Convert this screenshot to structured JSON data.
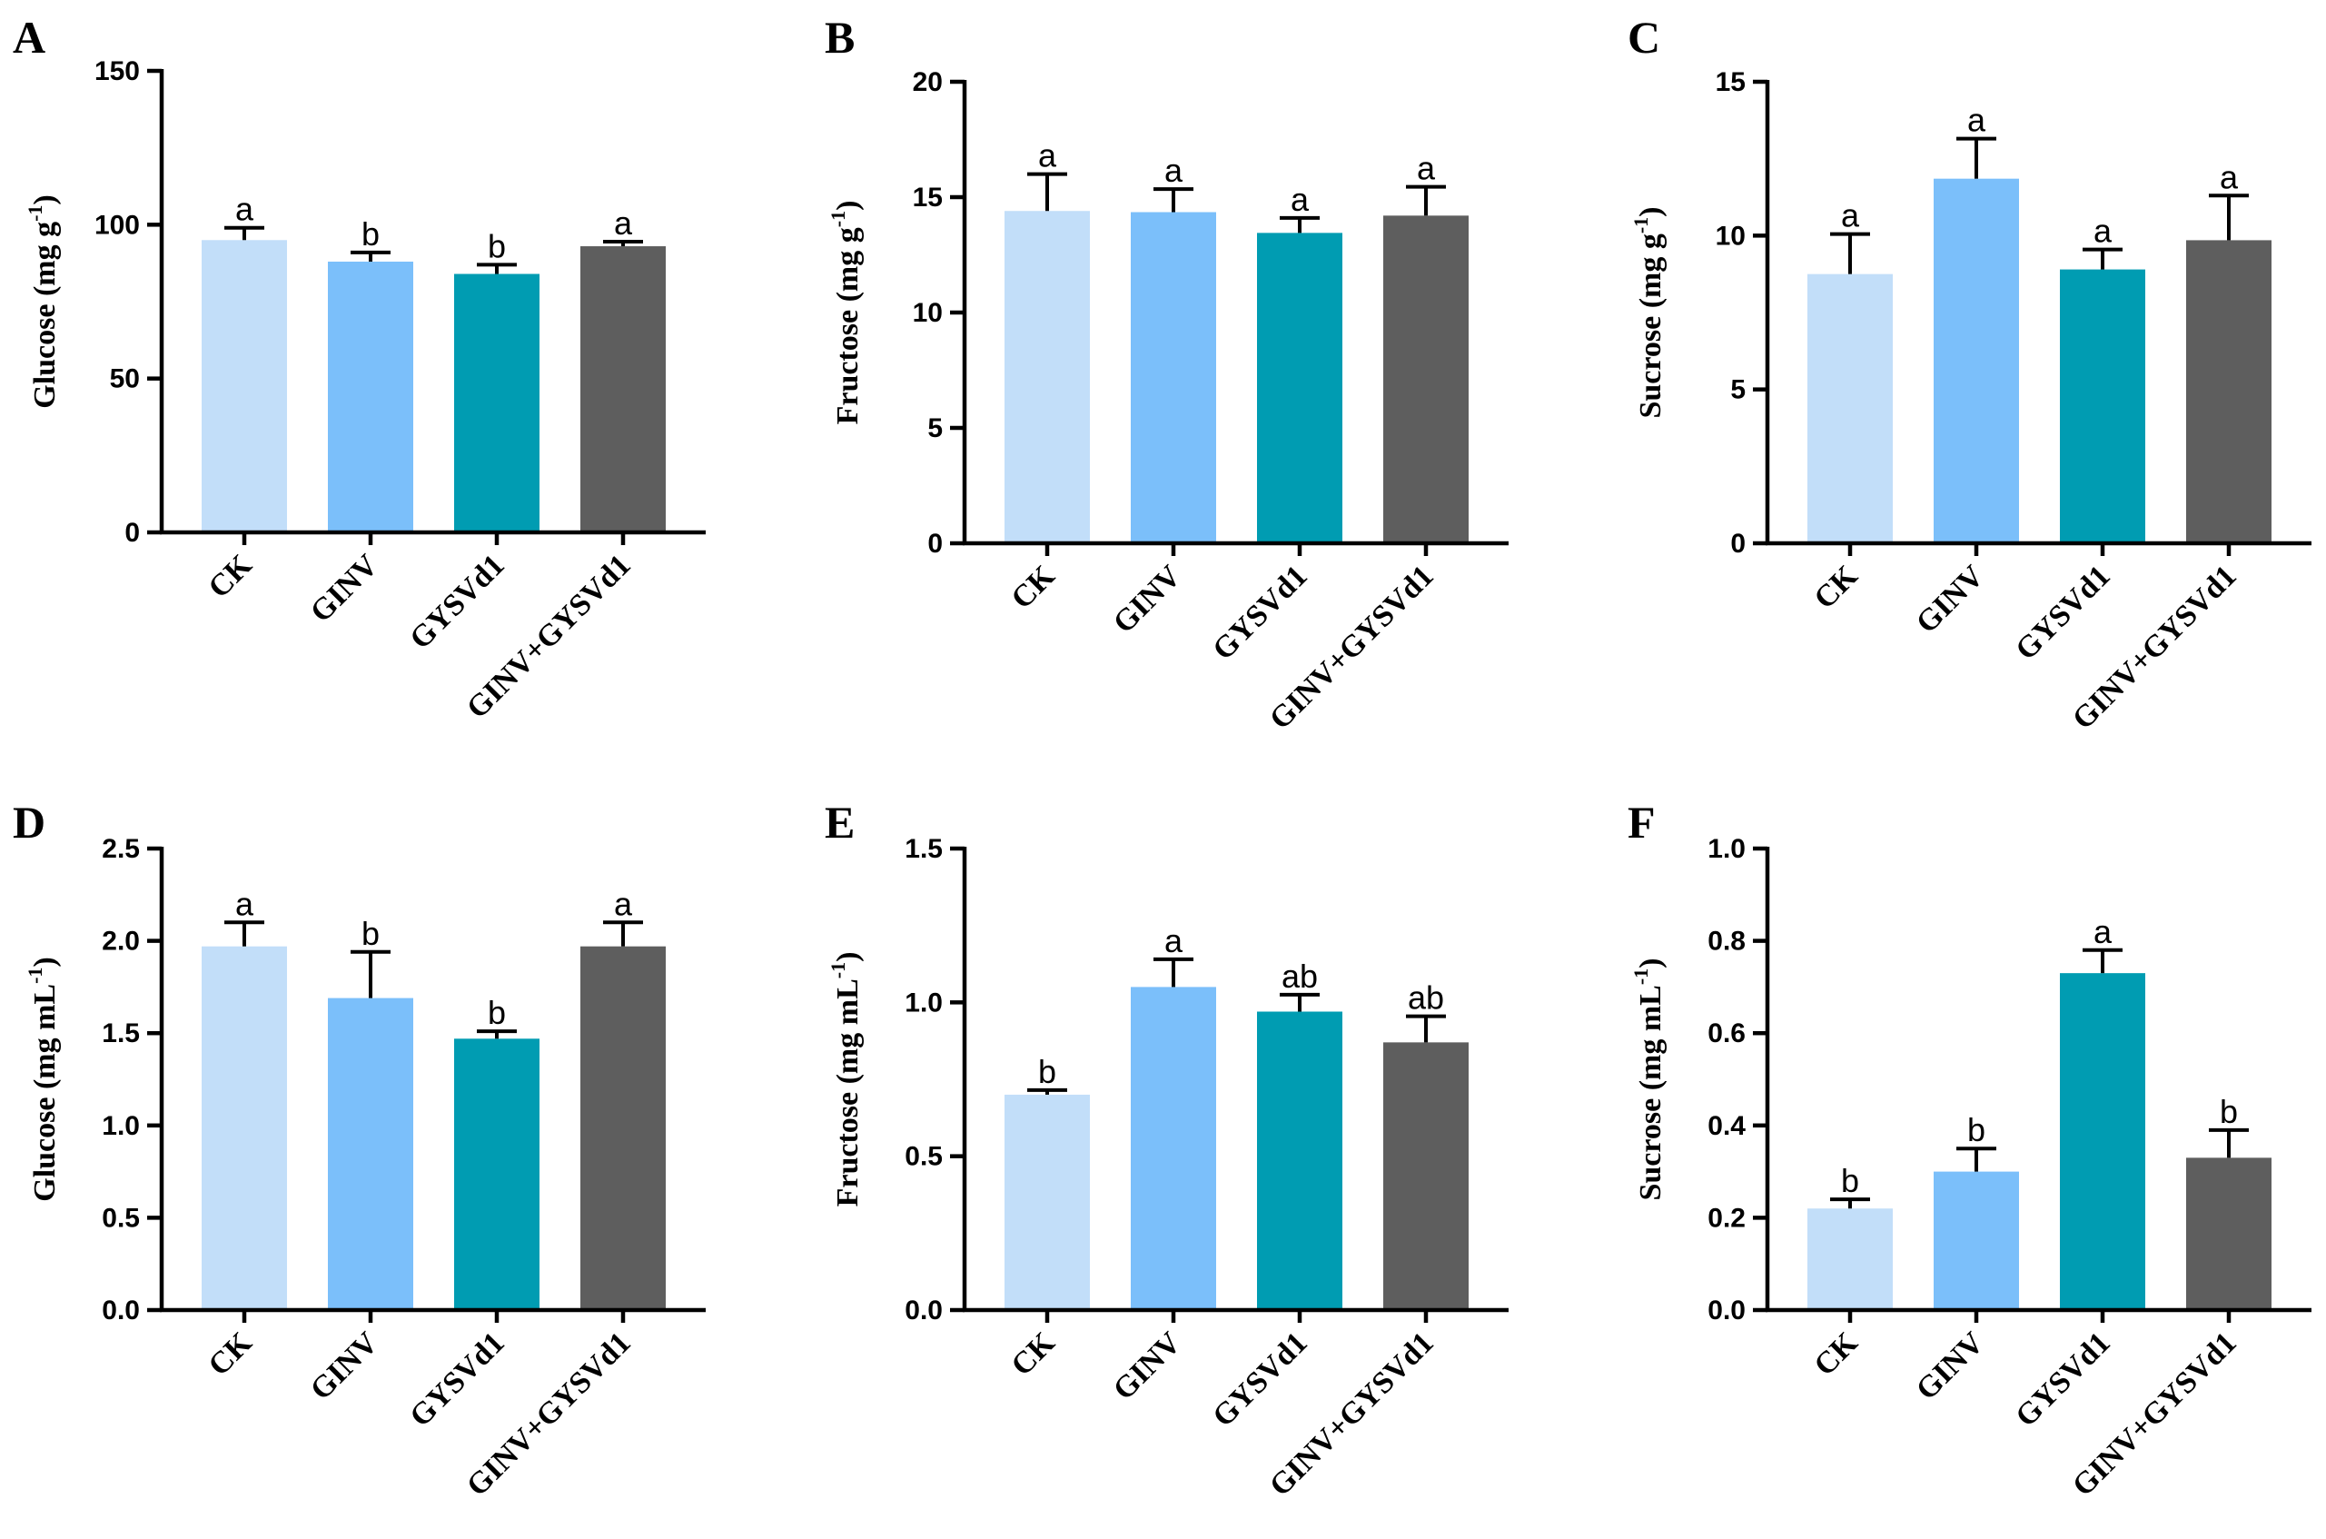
{
  "colors": {
    "CK": "#c2def9",
    "GINV": "#7bbffa",
    "GYSVd1": "#009cb2",
    "GINV+GYSVd1": "#5e5e5e"
  },
  "chart_data": [
    {
      "type": "bar",
      "panel": "A",
      "categories": [
        "CK",
        "GINV",
        "GYSVd1",
        "GINV+GYSVd1"
      ],
      "values": [
        95,
        88,
        84,
        93
      ],
      "errors": [
        4,
        3,
        3,
        1.5
      ],
      "significance": [
        "a",
        "b",
        "b",
        "a"
      ],
      "ylabel": "Glucose (mg g",
      "ylabel_sup": "-1",
      "ylabel_close": ")",
      "ylim": [
        0,
        150
      ],
      "yticks": [
        0,
        50,
        100,
        150
      ],
      "ytick_labels": [
        "0",
        "50",
        "100",
        "150"
      ]
    },
    {
      "type": "bar",
      "panel": "B",
      "categories": [
        "CK",
        "GINV",
        "GYSVd1",
        "GINV+GYSVd1"
      ],
      "values": [
        14.4,
        14.35,
        13.45,
        14.2
      ],
      "errors": [
        1.6,
        1.0,
        0.65,
        1.25
      ],
      "significance": [
        "a",
        "a",
        "a",
        "a"
      ],
      "ylabel": "Fructose (mg g",
      "ylabel_sup": "-1",
      "ylabel_close": ")",
      "ylim": [
        0,
        20
      ],
      "yticks": [
        0,
        5,
        10,
        15,
        20
      ],
      "ytick_labels": [
        "0",
        "5",
        "10",
        "15",
        "20"
      ]
    },
    {
      "type": "bar",
      "panel": "C",
      "categories": [
        "CK",
        "GINV",
        "GYSVd1",
        "GINV+GYSVd1"
      ],
      "values": [
        8.75,
        11.85,
        8.9,
        9.85
      ],
      "errors": [
        1.3,
        1.3,
        0.65,
        1.45
      ],
      "significance": [
        "a",
        "a",
        "a",
        "a"
      ],
      "ylabel": "Sucrose (mg g",
      "ylabel_sup": "-1",
      "ylabel_close": ")",
      "ylim": [
        0,
        15
      ],
      "yticks": [
        0,
        5,
        10,
        15
      ],
      "ytick_labels": [
        "0",
        "5",
        "10",
        "15"
      ]
    },
    {
      "type": "bar",
      "panel": "D",
      "categories": [
        "CK",
        "GINV",
        "GYSVd1",
        "GINV+GYSVd1"
      ],
      "values": [
        1.97,
        1.69,
        1.47,
        1.97
      ],
      "errors": [
        0.13,
        0.25,
        0.04,
        0.13
      ],
      "significance": [
        "a",
        "b",
        "b",
        "a"
      ],
      "ylabel": "Glucose (mg mL",
      "ylabel_sup": "-1",
      "ylabel_close": ")",
      "ylim": [
        0,
        2.5
      ],
      "yticks": [
        0,
        0.5,
        1.0,
        1.5,
        2.0,
        2.5
      ],
      "ytick_labels": [
        "0.0",
        "0.5",
        "1.0",
        "1.5",
        "2.0",
        "2.5"
      ]
    },
    {
      "type": "bar",
      "panel": "E",
      "categories": [
        "CK",
        "GINV",
        "GYSVd1",
        "GINV+GYSVd1"
      ],
      "values": [
        0.7,
        1.05,
        0.97,
        0.87
      ],
      "errors": [
        0.015,
        0.09,
        0.055,
        0.085
      ],
      "significance": [
        "b",
        "a",
        "ab",
        "ab"
      ],
      "ylabel": "Fructose (mg mL",
      "ylabel_sup": "-1",
      "ylabel_close": ")",
      "ylim": [
        0,
        1.5
      ],
      "yticks": [
        0,
        0.5,
        1.0,
        1.5
      ],
      "ytick_labels": [
        "0.0",
        "0.5",
        "1.0",
        "1.5"
      ]
    },
    {
      "type": "bar",
      "panel": "F",
      "categories": [
        "CK",
        "GINV",
        "GYSVd1",
        "GINV+GYSVd1"
      ],
      "values": [
        0.22,
        0.3,
        0.73,
        0.33
      ],
      "errors": [
        0.02,
        0.05,
        0.05,
        0.06
      ],
      "significance": [
        "b",
        "b",
        "a",
        "b"
      ],
      "ylabel": "Sucrose (mg mL",
      "ylabel_sup": "-1",
      "ylabel_close": ")",
      "ylim": [
        0,
        1.0
      ],
      "yticks": [
        0,
        0.2,
        0.4,
        0.6,
        0.8,
        1.0
      ],
      "ytick_labels": [
        "0.0",
        "0.2",
        "0.4",
        "0.6",
        "0.8",
        "1.0"
      ]
    }
  ]
}
